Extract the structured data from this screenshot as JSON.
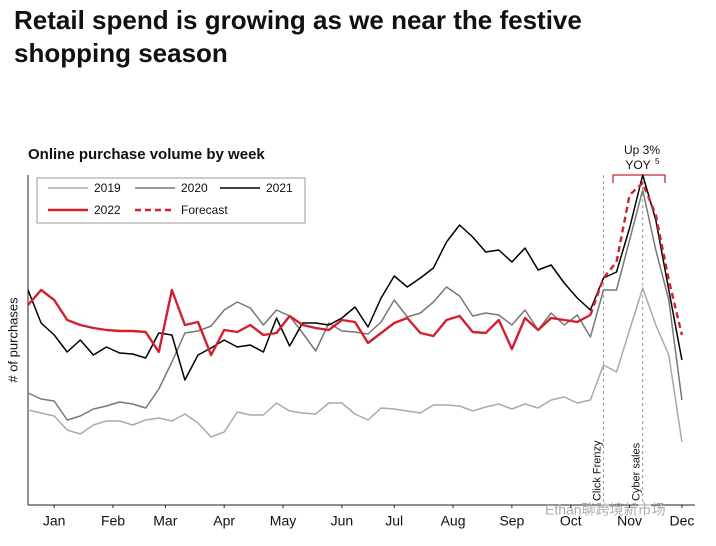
{
  "chart_data": {
    "type": "line",
    "title_lines": [
      "Retail spend is growing as we near the festive",
      "shopping season"
    ],
    "subtitle": "Online purchase volume by week",
    "y_label": "# of purchases",
    "x": [
      0,
      1,
      2,
      3,
      4,
      5,
      6,
      7,
      8,
      9,
      10,
      11,
      12,
      13,
      14,
      15,
      16,
      17,
      18,
      19,
      20,
      21,
      22,
      23,
      24,
      25,
      26,
      27,
      28,
      29,
      30,
      31,
      32,
      33,
      34,
      35,
      36,
      37,
      38,
      39,
      40,
      41,
      42,
      43,
      44,
      45,
      46,
      47,
      48,
      49,
      50
    ],
    "xlim": [
      0,
      51
    ],
    "xticks": [
      {
        "value": 2,
        "label": "Jan"
      },
      {
        "value": 6.5,
        "label": "Feb"
      },
      {
        "value": 10.5,
        "label": "Mar"
      },
      {
        "value": 15,
        "label": "Apr"
      },
      {
        "value": 19.5,
        "label": "May"
      },
      {
        "value": 24,
        "label": "Jun"
      },
      {
        "value": 28,
        "label": "Jul"
      },
      {
        "value": 32.5,
        "label": "Aug"
      },
      {
        "value": 37,
        "label": "Sep"
      },
      {
        "value": 41.5,
        "label": "Oct"
      },
      {
        "value": 46,
        "label": "Nov"
      },
      {
        "value": 50,
        "label": "Dec"
      }
    ],
    "ylim": [
      0,
      330
    ],
    "series": [
      {
        "name": "2019",
        "color": "#aaaaaa",
        "style": "solid",
        "values": [
          95,
          92,
          89,
          75,
          71,
          80,
          84,
          84,
          80,
          85,
          87,
          84,
          91,
          82,
          68,
          73,
          93,
          90,
          90,
          102,
          94,
          92,
          91,
          102,
          102,
          91,
          85,
          97,
          96,
          94,
          92,
          100,
          100,
          99,
          94,
          98,
          101,
          96,
          101,
          97,
          105,
          108,
          102,
          105,
          140,
          133,
          175,
          217,
          180,
          150,
          63
        ]
      },
      {
        "name": "2020",
        "color": "#777777",
        "style": "solid",
        "values": [
          112,
          106,
          104,
          85,
          89,
          96,
          99,
          103,
          101,
          97,
          116,
          143,
          172,
          174,
          179,
          195,
          203,
          197,
          180,
          195,
          189,
          172,
          154,
          182,
          174,
          173,
          171,
          183,
          205,
          188,
          192,
          203,
          218,
          209,
          189,
          192,
          190,
          180,
          195,
          175,
          192,
          180,
          190,
          168,
          215,
          215,
          265,
          315,
          255,
          205,
          105
        ]
      },
      {
        "name": "2021",
        "color": "#000000",
        "style": "solid",
        "values": [
          215,
          182,
          170,
          153,
          165,
          150,
          158,
          152,
          151,
          147,
          172,
          170,
          125,
          150,
          157,
          165,
          158,
          160,
          153,
          187,
          159,
          182,
          182,
          180,
          187,
          198,
          178,
          207,
          229,
          218,
          227,
          237,
          263,
          280,
          268,
          253,
          255,
          243,
          257,
          235,
          240,
          222,
          207,
          195,
          227,
          233,
          277,
          330,
          285,
          215,
          145
        ]
      },
      {
        "name": "2022",
        "color": "#d2202f",
        "style": "solid",
        "values": [
          200,
          215,
          205,
          185,
          180,
          177,
          175,
          174,
          174,
          173,
          153,
          215,
          180,
          183,
          150,
          175,
          173,
          180,
          170,
          172,
          189,
          180,
          177,
          175,
          185,
          183,
          162,
          172,
          182,
          187,
          172,
          169,
          185,
          189,
          173,
          172,
          185,
          156,
          187,
          175,
          187,
          185,
          183,
          190,
          null,
          null,
          null,
          null,
          null,
          null,
          null
        ]
      },
      {
        "name": "Forecast",
        "color": "#d2202f",
        "style": "dashed",
        "values": [
          null,
          null,
          null,
          null,
          null,
          null,
          null,
          null,
          null,
          null,
          null,
          null,
          null,
          null,
          null,
          null,
          null,
          null,
          null,
          null,
          null,
          null,
          null,
          null,
          null,
          null,
          null,
          null,
          null,
          null,
          null,
          null,
          null,
          null,
          null,
          null,
          null,
          null,
          null,
          null,
          null,
          null,
          null,
          190,
          227,
          243,
          310,
          322,
          290,
          225,
          170
        ]
      }
    ],
    "events": [
      {
        "x": 44,
        "label": "Click Frenzy"
      },
      {
        "x": 47,
        "label": "Cyber sales"
      }
    ],
    "annotation": {
      "text": "Up 3%",
      "line2": "YOY",
      "footnote": "5"
    },
    "watermark": "Ethan聊跨境新市场"
  }
}
